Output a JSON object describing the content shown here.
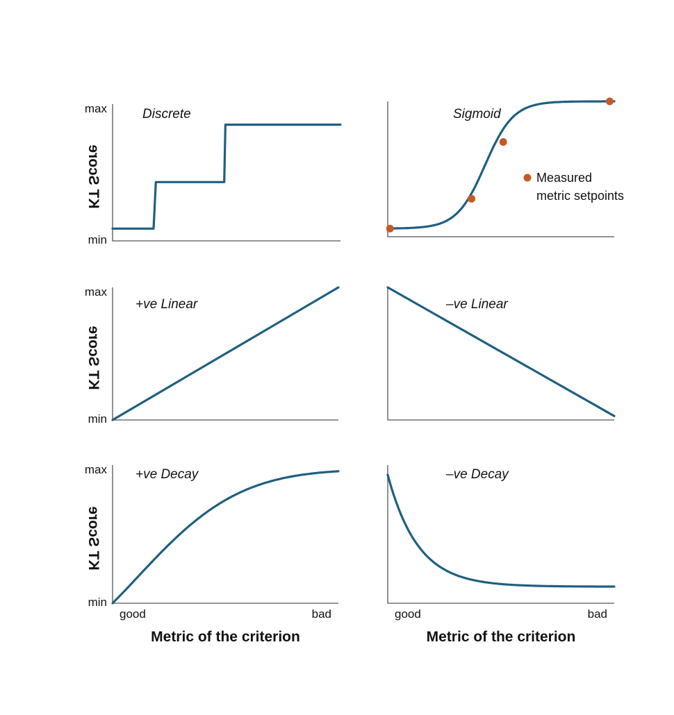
{
  "colors": {
    "curve": "#1f5f80",
    "marker": "#c65a24",
    "axis": "#555555"
  },
  "chart_data": [
    {
      "type": "line",
      "title": "Discrete",
      "ylabel": "KT Score",
      "y_ticks": {
        "max": "max",
        "min": "min"
      },
      "x_ticks": {
        "left": "",
        "right": ""
      },
      "xlabel": "",
      "xlim": [
        0,
        1
      ],
      "ylim": [
        0,
        1
      ],
      "series": [
        {
          "x": [
            0,
            0.18,
            0.19,
            0.49,
            0.495,
            1.0
          ],
          "y": [
            0.09,
            0.09,
            0.43,
            0.43,
            0.85,
            0.85
          ]
        }
      ]
    },
    {
      "type": "line",
      "title": "Sigmoid",
      "ylabel": "",
      "y_ticks": {
        "max": "",
        "min": ""
      },
      "x_ticks": {
        "left": "",
        "right": ""
      },
      "xlabel": "",
      "xlim": [
        0,
        1
      ],
      "ylim": [
        0,
        1
      ],
      "curve": "sigmoid",
      "sigmoid": {
        "low": 0.06,
        "high": 1.0,
        "mid": 0.43,
        "k": 16
      },
      "markers": {
        "x": [
          0.01,
          0.37,
          0.51,
          0.98
        ],
        "y": [
          0.06,
          0.28,
          0.7,
          1.0
        ]
      },
      "legend": {
        "lines": [
          "Measured",
          "metric setpoints"
        ],
        "position": "right-middle"
      }
    },
    {
      "type": "line",
      "title": "+ve Linear",
      "ylabel": "KT Score",
      "y_ticks": {
        "max": "max",
        "min": "min"
      },
      "x_ticks": {
        "left": "",
        "right": ""
      },
      "xlabel": "",
      "xlim": [
        0,
        1
      ],
      "ylim": [
        0,
        1
      ],
      "series": [
        {
          "x": [
            0,
            1
          ],
          "y": [
            0,
            1
          ]
        }
      ]
    },
    {
      "type": "line",
      "title": "–ve Linear",
      "ylabel": "",
      "y_ticks": {
        "max": "",
        "min": ""
      },
      "x_ticks": {
        "left": "",
        "right": ""
      },
      "xlabel": "",
      "xlim": [
        0,
        1
      ],
      "ylim": [
        0,
        1
      ],
      "series": [
        {
          "x": [
            0,
            1
          ],
          "y": [
            1,
            0.03
          ]
        }
      ]
    },
    {
      "type": "line",
      "title": "+ve Decay",
      "ylabel": "KT Score",
      "y_ticks": {
        "max": "max",
        "min": "min"
      },
      "x_ticks": {
        "left": "good",
        "right": "bad"
      },
      "xlabel": "Metric of the criterion",
      "xlim": [
        0,
        1
      ],
      "ylim": [
        0,
        1
      ],
      "curve": "decay-up",
      "decay": {
        "start": 0,
        "plateau": 0.97,
        "k": 4.2
      }
    },
    {
      "type": "line",
      "title": "–ve Decay",
      "ylabel": "",
      "y_ticks": {
        "max": "",
        "min": ""
      },
      "x_ticks": {
        "left": "good",
        "right": "bad"
      },
      "xlabel": "Metric of the criterion",
      "xlim": [
        0,
        1
      ],
      "ylim": [
        0,
        1
      ],
      "curve": "decay-down",
      "decay": {
        "start": 0.93,
        "plateau": 0.12,
        "k": 7.5
      }
    }
  ]
}
